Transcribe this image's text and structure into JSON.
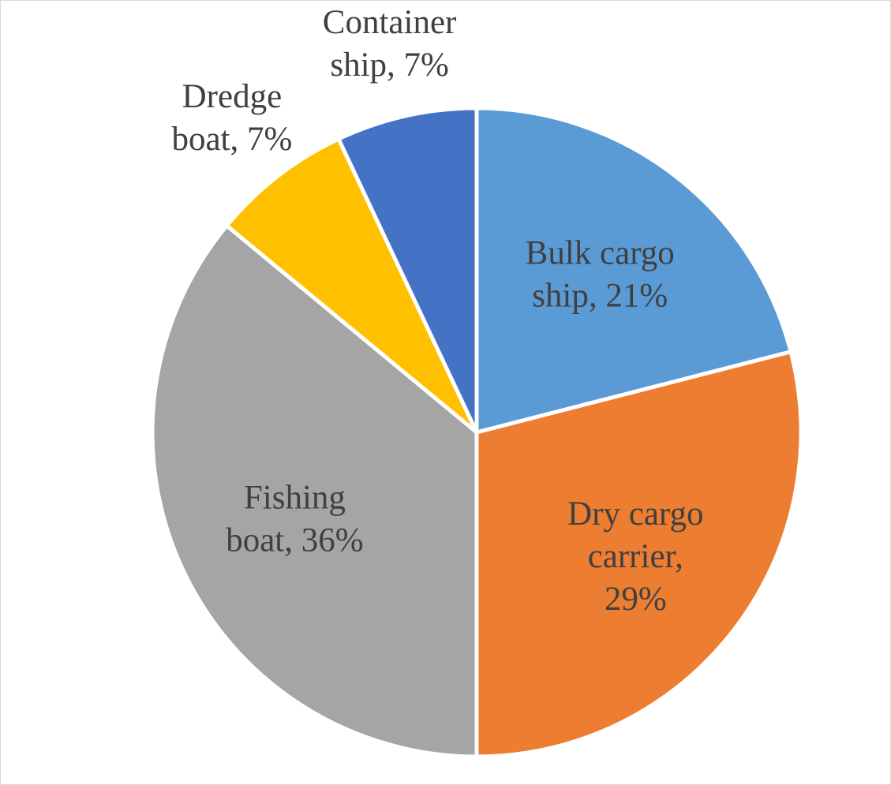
{
  "chart_data": {
    "type": "pie",
    "title": "",
    "start_angle_deg": 0,
    "direction": "clockwise",
    "legend": "none",
    "data_labels": "category-and-percent",
    "slices": [
      {
        "category": "Bulk cargo ship",
        "value": 21,
        "label_lines": [
          "Bulk cargo",
          "ship, 21%"
        ],
        "color": "#5B9BD5",
        "label_placement": "inside"
      },
      {
        "category": "Dry cargo carrier",
        "value": 29,
        "label_lines": [
          "Dry cargo",
          "carrier,",
          "29%"
        ],
        "color": "#ED7D31",
        "label_placement": "inside"
      },
      {
        "category": "Fishing boat",
        "value": 36,
        "label_lines": [
          "Fishing",
          "boat, 36%"
        ],
        "color": "#A5A5A5",
        "label_placement": "inside"
      },
      {
        "category": "Dredge boat",
        "value": 7,
        "label_lines": [
          "Dredge",
          "boat, 7%"
        ],
        "color": "#FFC000",
        "label_placement": "outside"
      },
      {
        "category": "Container ship",
        "value": 7,
        "label_lines": [
          "Container",
          "ship, 7%"
        ],
        "color": "#4472C4",
        "label_placement": "outside"
      }
    ]
  }
}
